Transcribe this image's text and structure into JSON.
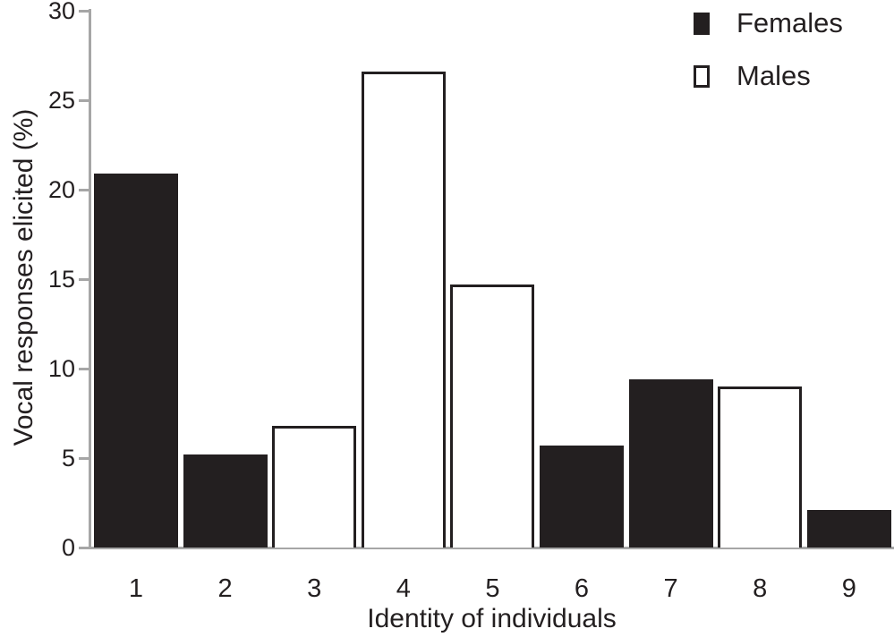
{
  "colors": {
    "bar_fill_black": "#231f20",
    "bar_outline": "#231f20",
    "axis_line_gray": "#a6a6a6",
    "text": "#231f20",
    "background": "#ffffff"
  },
  "legend": {
    "items": [
      {
        "label": "Females",
        "swatch": "filled-black-square"
      },
      {
        "label": "Males",
        "swatch": "outlined-white-square"
      }
    ]
  },
  "chart_data": {
    "type": "bar",
    "title": "",
    "xlabel": "Identity of individuals",
    "ylabel": "Vocal responses elicited (%)",
    "categories": [
      "1",
      "2",
      "3",
      "4",
      "5",
      "6",
      "7",
      "8",
      "9"
    ],
    "series": [
      {
        "name": "Females",
        "style": "solid-black",
        "values": [
          20.9,
          5.2,
          null,
          null,
          null,
          5.7,
          9.4,
          null,
          2.1
        ]
      },
      {
        "name": "Males",
        "style": "open-white",
        "values": [
          null,
          null,
          6.8,
          26.6,
          14.7,
          null,
          null,
          9.0,
          null
        ]
      }
    ],
    "ylim": [
      0,
      30
    ],
    "yticks": [
      0,
      5,
      10,
      15,
      20,
      25,
      30
    ],
    "grid": false,
    "legend_position": "top-right"
  }
}
